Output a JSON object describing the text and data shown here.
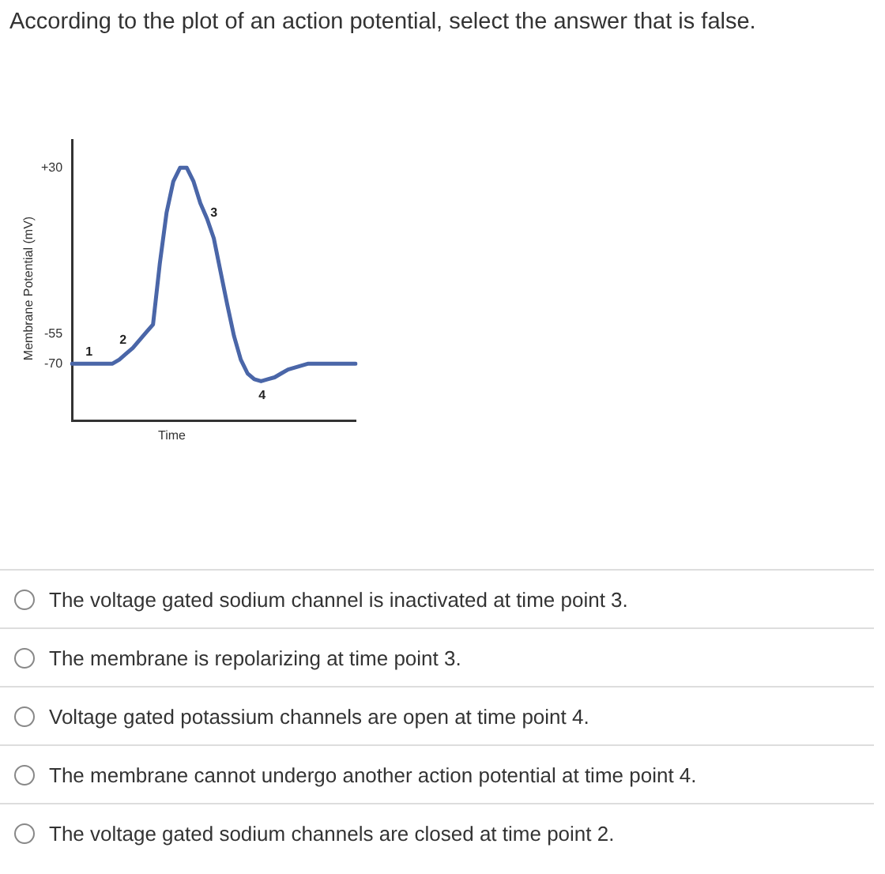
{
  "chart_data": {
    "type": "line",
    "title": "According to the plot of an action potential, select the answer that is false.",
    "xlabel": "Time",
    "ylabel": "Membrane Potential (mV)",
    "categories": [
      null,
      null,
      null,
      null,
      null,
      null,
      null,
      null,
      null,
      null,
      null,
      null,
      null,
      null,
      null,
      null,
      null,
      null,
      null,
      null,
      null,
      null,
      null,
      null,
      null,
      null,
      null,
      null,
      null,
      null,
      null,
      null,
      null,
      null,
      null,
      null,
      null,
      null,
      null,
      null,
      null,
      null,
      null
    ],
    "series": [
      {
        "color": "#4a66a8",
        "values": [
          -70,
          -70,
          -70,
          -70,
          -70,
          -70,
          -70,
          -68,
          -65,
          -62,
          -58,
          -54,
          -50,
          -19,
          7,
          23,
          30,
          30,
          23,
          12,
          4,
          -6,
          -23,
          -40,
          -56,
          -68,
          -75,
          -78,
          -79,
          -78,
          -77,
          -75,
          -73,
          -72,
          -71,
          -70,
          -70,
          -70,
          -70,
          -70,
          -70,
          -70,
          -70
        ],
        "line_style": "solid"
      }
    ],
    "ylim": [
      -99,
      44
    ],
    "yticks": [
      {
        "value": 30,
        "label": "+30"
      },
      -55,
      -70
    ],
    "tick_labels": "y",
    "grid": false,
    "legend": false,
    "marker": "none",
    "annotations": [
      "1",
      "2",
      "3",
      "4",
      "The voltage gated sodium channel is inactivated at time point 3.",
      "The membrane is repolarizing at time point 3.",
      "Voltage gated potassium channels are open at time point 4.",
      "The membrane cannot undergo another action potential at time point 4.",
      "The voltage gated sodium channels are closed at time point 2."
    ]
  }
}
